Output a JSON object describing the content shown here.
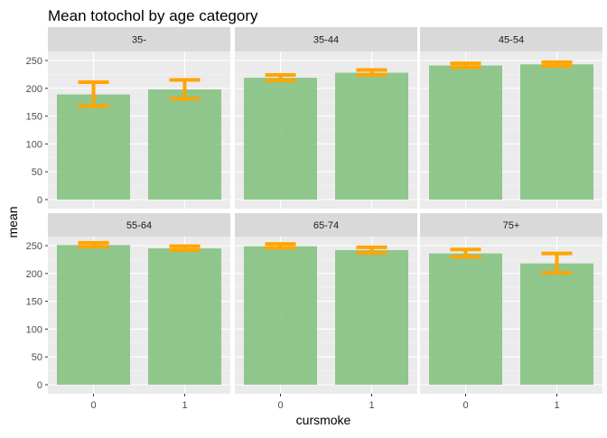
{
  "chart_data": {
    "type": "bar",
    "title": "Mean totochol by age category",
    "xlabel": "cursmoke",
    "ylabel": "mean",
    "categories": [
      "0",
      "1"
    ],
    "ylim": [
      0,
      250
    ],
    "yticks": [
      0,
      50,
      100,
      150,
      200,
      250
    ],
    "grid": true,
    "facet_layout": [
      2,
      3
    ],
    "bar_color": "#7fbf7b",
    "errorbar_color": "#ffa500",
    "panel_background": "#ebebeb",
    "strip_background": "#d9d9d9",
    "panels": [
      {
        "label": "35-",
        "values": [
          189,
          198
        ],
        "err_low": [
          168,
          181
        ],
        "err_high": [
          211,
          215
        ]
      },
      {
        "label": "35-44",
        "values": [
          219,
          228
        ],
        "err_low": [
          214,
          224
        ],
        "err_high": [
          224,
          233
        ]
      },
      {
        "label": "45-54",
        "values": [
          241,
          243
        ],
        "err_low": [
          238,
          240
        ],
        "err_high": [
          245,
          247
        ]
      },
      {
        "label": "55-64",
        "values": [
          251,
          245
        ],
        "err_low": [
          248,
          242
        ],
        "err_high": [
          255,
          249
        ]
      },
      {
        "label": "65-74",
        "values": [
          249,
          242
        ],
        "err_low": [
          246,
          237
        ],
        "err_high": [
          253,
          247
        ]
      },
      {
        "label": "75+",
        "values": [
          236,
          218
        ],
        "err_low": [
          230,
          201
        ],
        "err_high": [
          243,
          236
        ]
      }
    ]
  }
}
